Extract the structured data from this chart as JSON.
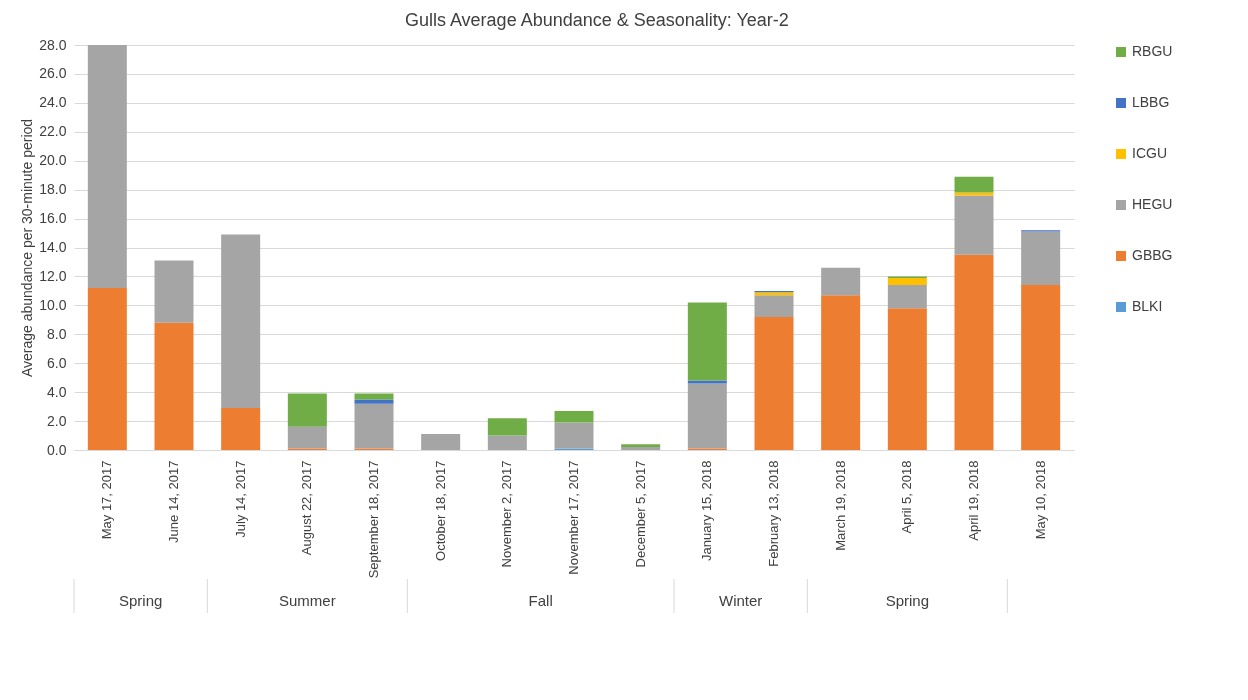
{
  "chart_data": {
    "type": "bar",
    "title": "Gulls Average Abundance & Seasonality: Year-2",
    "ylabel": "Average abundance per 30-minute period",
    "categories": [
      "May 17, 2017",
      "June 14, 2017",
      "July 14, 2017",
      "August 22, 2017",
      "September 18, 2017",
      "October 18, 2017",
      "November 2, 2017",
      "November 17, 2017",
      "December 5, 2017",
      "January 15, 2018",
      "February 13, 2018",
      "March 19, 2018",
      "April 5, 2018",
      "April 19, 2018",
      "May 10, 2018"
    ],
    "series": [
      {
        "name": "BLKI",
        "color": "#5b9bd5",
        "values": [
          0,
          0,
          0,
          0,
          0,
          0,
          0,
          0.1,
          0,
          0,
          0,
          0,
          0,
          0,
          0
        ]
      },
      {
        "name": "GBBG",
        "color": "#ed7d31",
        "values": [
          11.2,
          8.8,
          2.9,
          0.1,
          0.1,
          0,
          0,
          0,
          0,
          0.1,
          9.2,
          10.7,
          9.8,
          13.5,
          11.4
        ]
      },
      {
        "name": "HEGU",
        "color": "#a5a5a5",
        "values": [
          16.8,
          4.3,
          12.0,
          1.5,
          3.1,
          1.1,
          1.0,
          1.8,
          0.2,
          4.5,
          1.5,
          1.9,
          1.6,
          4.1,
          3.7
        ]
      },
      {
        "name": "ICGU",
        "color": "#ffc000",
        "values": [
          0,
          0,
          0,
          0,
          0,
          0,
          0,
          0,
          0,
          0,
          0.2,
          0,
          0.5,
          0.2,
          0
        ]
      },
      {
        "name": "LBBG",
        "color": "#4472c4",
        "values": [
          0,
          0,
          0,
          0,
          0.3,
          0,
          0,
          0,
          0,
          0.2,
          0.1,
          0,
          0,
          0,
          0.1
        ]
      },
      {
        "name": "RBGU",
        "color": "#70ad47",
        "values": [
          0,
          0,
          0,
          2.3,
          0.4,
          0,
          1.2,
          0.8,
          0.2,
          5.4,
          0,
          0,
          0.1,
          1.1,
          0
        ]
      }
    ],
    "stacked": true,
    "ylim": [
      0,
      28
    ],
    "yticks": [
      {
        "value": 0,
        "label": "0.0"
      },
      {
        "value": 2,
        "label": "2.0"
      },
      {
        "value": 4,
        "label": "4.0"
      },
      {
        "value": 6,
        "label": "6.0"
      },
      {
        "value": 8,
        "label": "8.0"
      },
      {
        "value": 10,
        "label": "10.0"
      },
      {
        "value": 12,
        "label": "12.0"
      },
      {
        "value": 14,
        "label": "14.0"
      },
      {
        "value": 16,
        "label": "16.0"
      },
      {
        "value": 18,
        "label": "18.0"
      },
      {
        "value": 20,
        "label": "20.0"
      },
      {
        "value": 22,
        "label": "22.0"
      },
      {
        "value": 24,
        "label": "24.0"
      },
      {
        "value": 26,
        "label": "26.0"
      },
      {
        "value": 28,
        "label": "28.0"
      }
    ],
    "grid": "y",
    "legend": "right",
    "annotations": [
      "Spring",
      "Summer",
      "Fall",
      "Winter",
      "Spring"
    ]
  }
}
